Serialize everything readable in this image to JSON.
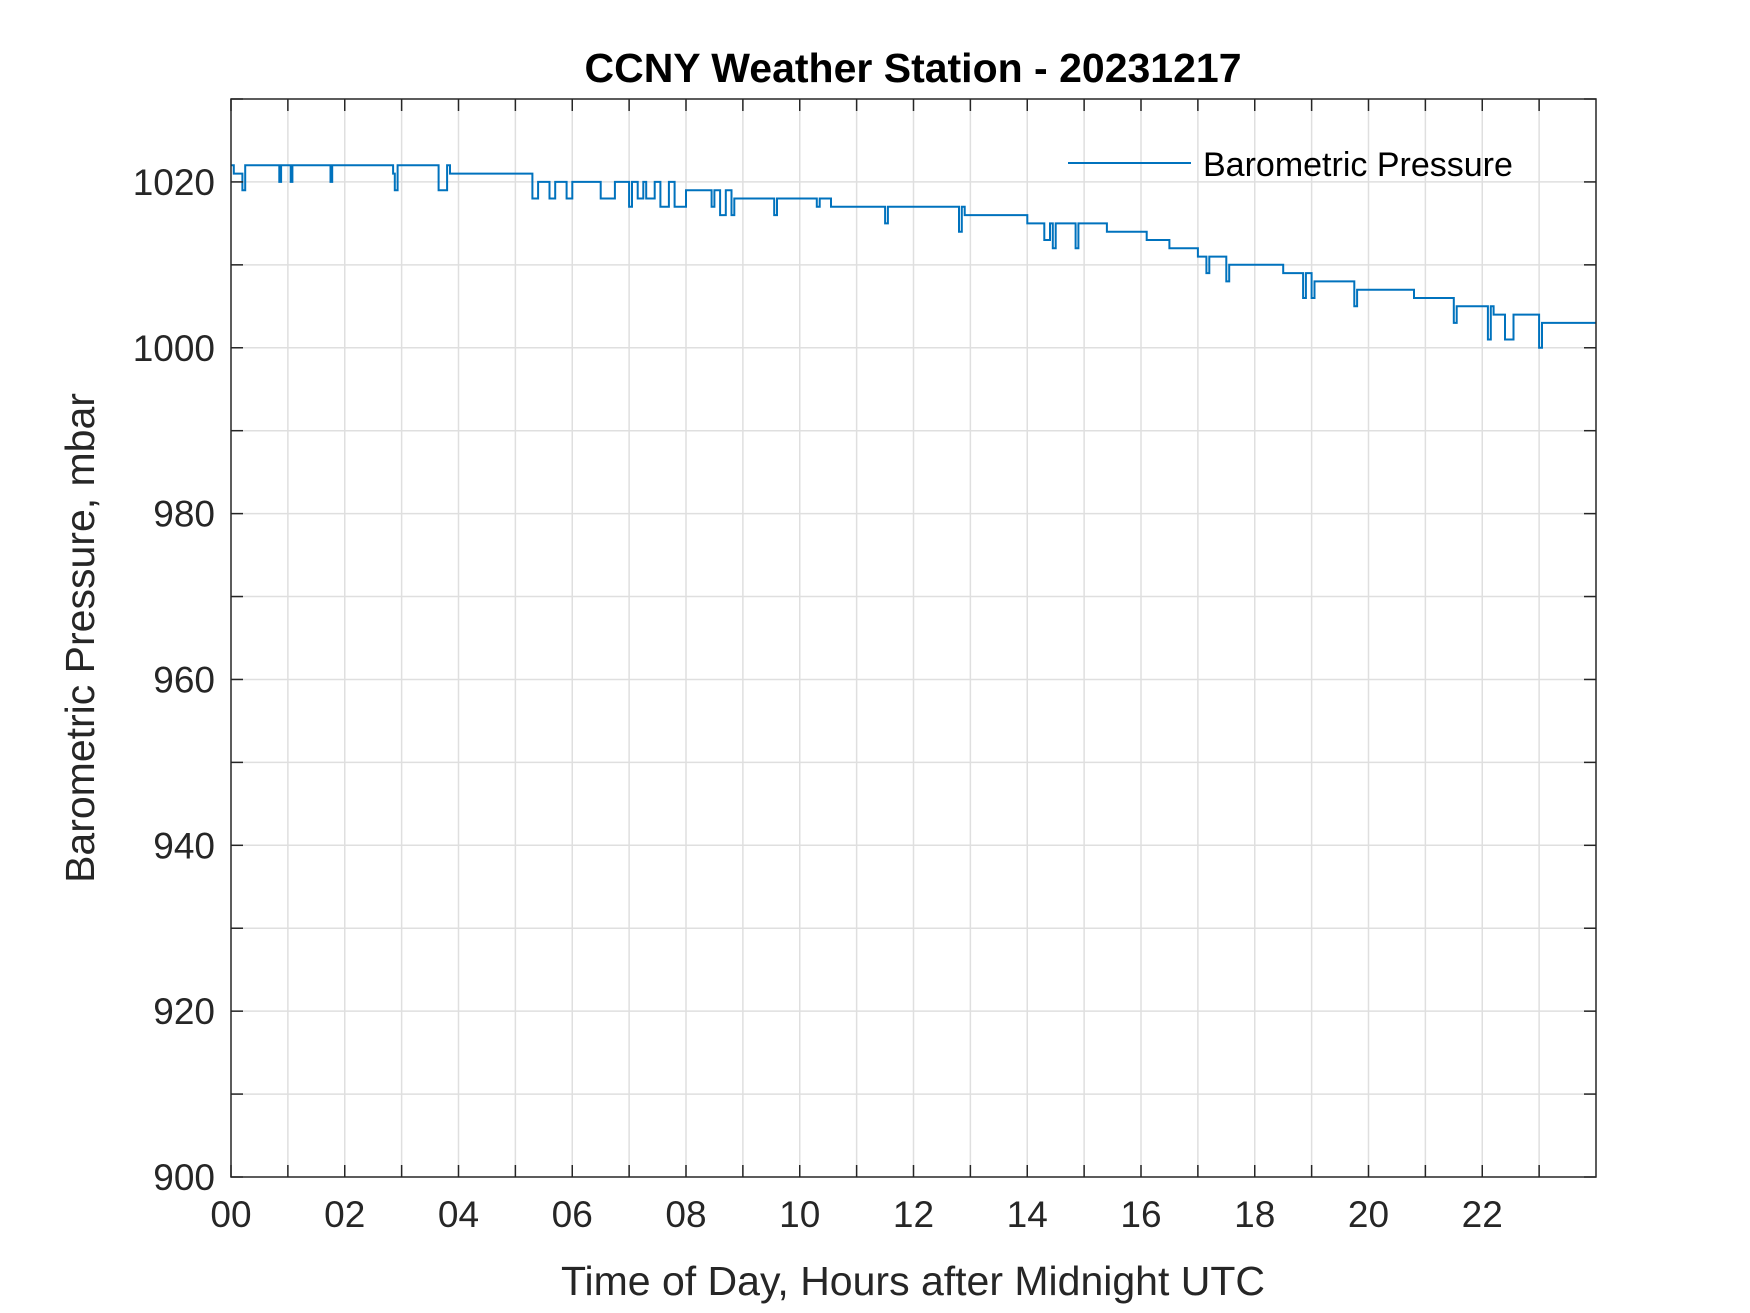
{
  "chart_data": {
    "type": "line",
    "title": "CCNY Weather Station - 20231217",
    "xlabel": "Time of Day, Hours after Midnight UTC",
    "ylabel": "Barometric Pressure, mbar",
    "xlim": [
      0,
      24
    ],
    "ylim": [
      900,
      1030
    ],
    "xticks": [
      0,
      2,
      4,
      6,
      8,
      10,
      12,
      14,
      16,
      18,
      20,
      22
    ],
    "xtick_labels": [
      "00",
      "02",
      "04",
      "06",
      "08",
      "10",
      "12",
      "14",
      "16",
      "18",
      "20",
      "22"
    ],
    "yticks": [
      900,
      920,
      940,
      960,
      980,
      1000,
      1020
    ],
    "ytick_labels": [
      "900",
      "920",
      "940",
      "960",
      "980",
      "1000",
      "1020"
    ],
    "grid": true,
    "legend_position": "top-right",
    "colors": {
      "series": "#0072BD",
      "axes": "#262626",
      "grid": "#dfdfdf"
    },
    "series": [
      {
        "name": "Barometric Pressure",
        "x": [
          0,
          0.05,
          0.1,
          0.2,
          0.25,
          0.3,
          0.85,
          0.88,
          0.93,
          1.05,
          1.08,
          1.13,
          1.75,
          1.78,
          1.83,
          2.85,
          2.88,
          2.93,
          3.0,
          3.05,
          3.1,
          3.65,
          3.8,
          3.85,
          3.9,
          5.3,
          5.4,
          5.6,
          5.7,
          5.9,
          6.0,
          6.5,
          6.75,
          7.0,
          7.05,
          7.15,
          7.25,
          7.3,
          7.45,
          7.55,
          7.7,
          7.8,
          8.0,
          8.45,
          8.5,
          8.6,
          8.7,
          8.8,
          8.85,
          9.0,
          9.55,
          9.6,
          9.65,
          10.3,
          10.35,
          10.55,
          11.0,
          11.5,
          11.55,
          11.6,
          12.8,
          12.85,
          12.9,
          13.0,
          14.0,
          14.3,
          14.4,
          14.45,
          14.5,
          14.85,
          14.9,
          15.4,
          16.1,
          16.5,
          17.0,
          17.15,
          17.2,
          17.5,
          17.55,
          17.6,
          18.5,
          18.85,
          18.9,
          19.0,
          19.05,
          19.1,
          19.75,
          19.8,
          19.85,
          20.2,
          20.8,
          21.5,
          21.55,
          21.6,
          22.1,
          22.15,
          22.2,
          22.4,
          22.55,
          22.6,
          23.0,
          23.05,
          23.1,
          24.0
        ],
        "y": [
          1022,
          1021,
          1021,
          1019,
          1022,
          1022,
          1020,
          1022,
          1022,
          1020,
          1022,
          1022,
          1020,
          1022,
          1022,
          1021,
          1019,
          1022,
          1022,
          1022,
          1022,
          1019,
          1022,
          1021,
          1021,
          1018,
          1020,
          1018,
          1020,
          1018,
          1020,
          1018,
          1020,
          1017,
          1020,
          1018,
          1020,
          1018,
          1020,
          1017,
          1020,
          1017,
          1019,
          1017,
          1019,
          1016,
          1019,
          1016,
          1018,
          1018,
          1016,
          1018,
          1018,
          1017,
          1018,
          1017,
          1017,
          1015,
          1017,
          1017,
          1014,
          1017,
          1016,
          1016,
          1015,
          1013,
          1015,
          1012,
          1015,
          1012,
          1015,
          1014,
          1013,
          1012,
          1011,
          1009,
          1011,
          1008,
          1010,
          1010,
          1009,
          1006,
          1009,
          1006,
          1008,
          1008,
          1005,
          1007,
          1007,
          1007,
          1006,
          1003,
          1005,
          1005,
          1001,
          1005,
          1004,
          1001,
          1004,
          1004,
          1000,
          1003,
          1003,
          1003
        ]
      }
    ]
  }
}
